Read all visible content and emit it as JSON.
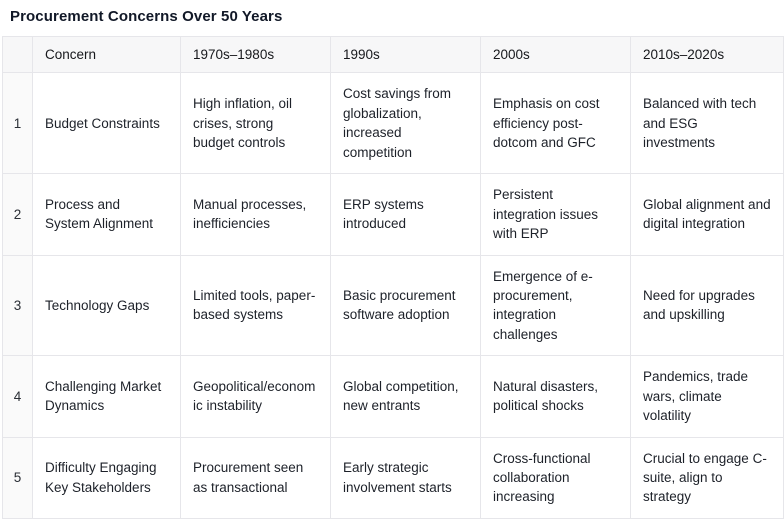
{
  "title": "Procurement Concerns Over 50 Years",
  "colors": {
    "header_bg": "#f7f7f8",
    "index_bg": "#fafafa",
    "border": "#e6e6ea",
    "text": "#1d2129",
    "title_text": "#111827"
  },
  "table": {
    "columns": [
      "Concern",
      "1970s–1980s",
      "1990s",
      "2000s",
      "2010s–2020s"
    ],
    "rows": [
      {
        "num": "1",
        "concern": "Budget Constraints",
        "cells": [
          "High inflation, oil crises, strong budget controls",
          "Cost savings from globalization, increased competition",
          "Emphasis on cost efficiency post-dotcom and GFC",
          "Balanced with tech and ESG investments"
        ]
      },
      {
        "num": "2",
        "concern": "Process and System Alignment",
        "cells": [
          "Manual processes, inefficiencies",
          "ERP systems introduced",
          "Persistent integration issues with ERP",
          "Global alignment and digital integration"
        ]
      },
      {
        "num": "3",
        "concern": "Technology Gaps",
        "cells": [
          "Limited tools, paper-based systems",
          "Basic procurement software adoption",
          "Emergence of e-procurement, integration challenges",
          "Need for upgrades and upskilling"
        ]
      },
      {
        "num": "4",
        "concern": "Challenging Market Dynamics",
        "cells": [
          "Geopolitical/economic instability",
          "Global competition, new entrants",
          "Natural disasters, political shocks",
          "Pandemics, trade wars, climate volatility"
        ]
      },
      {
        "num": "5",
        "concern": "Difficulty Engaging Key Stakeholders",
        "cells": [
          "Procurement seen as transactional",
          "Early strategic involvement starts",
          "Cross-functional collaboration increasing",
          "Crucial to engage C-suite, align to strategy"
        ]
      }
    ]
  }
}
